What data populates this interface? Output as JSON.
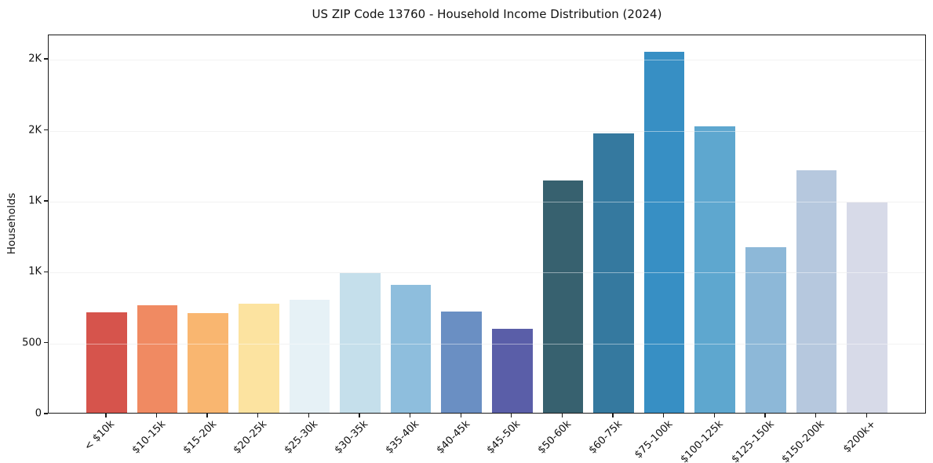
{
  "chart_data": {
    "type": "bar",
    "title": "US ZIP Code 13760 - Household Income Distribution (2024)",
    "xlabel": "",
    "ylabel": "Households",
    "categories": [
      "< $10k",
      "$10-15k",
      "$15-20k",
      "$20-25k",
      "$25-30k",
      "$30-35k",
      "$35-40k",
      "$40-45k",
      "$45-50k",
      "$50-60k",
      "$60-75k",
      "$75-100k",
      "$100-125k",
      "$125-150k",
      "$150-200k",
      "$200k+"
    ],
    "values": [
      710,
      760,
      705,
      770,
      795,
      985,
      900,
      715,
      590,
      1640,
      1970,
      2545,
      2020,
      1170,
      1710,
      1485
    ],
    "bar_colors": [
      "#d6544c",
      "#f08a62",
      "#f9b670",
      "#fce3a0",
      "#e6f1f6",
      "#c5dfeb",
      "#8ebedd",
      "#6a8fc3",
      "#5a5ea8",
      "#37616f",
      "#35799f",
      "#378fc4",
      "#5ea7cf",
      "#8db8d8",
      "#b6c8de",
      "#d7dae8"
    ],
    "ylim": [
      0,
      2672
    ],
    "yticks": [
      {
        "value": 0,
        "label": "0"
      },
      {
        "value": 500,
        "label": "500"
      },
      {
        "value": 1000,
        "label": "1K"
      },
      {
        "value": 1500,
        "label": "1K"
      },
      {
        "value": 2000,
        "label": "2K"
      },
      {
        "value": 2500,
        "label": "2K"
      }
    ],
    "grid": "horizontal",
    "gridline_color": "#e8e8e8",
    "axis_color": "#1a1a1a",
    "legend": "none"
  }
}
